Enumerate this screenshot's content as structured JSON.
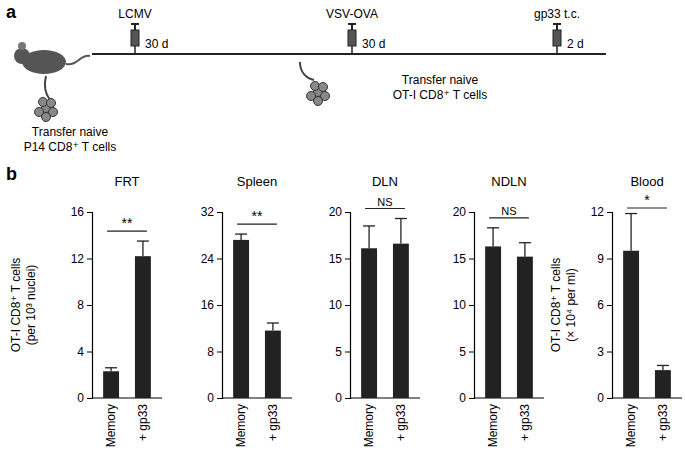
{
  "diagram": {
    "panel": "a",
    "timeline": [
      {
        "label": "LCMV",
        "after": "30 d"
      },
      {
        "label": "VSV-OVA",
        "after": "30 d"
      },
      {
        "label": "gp33 t.c.",
        "after": "2 d"
      }
    ],
    "transfers": [
      [
        "Transfer naive",
        "P14 CD8⁺ T cells"
      ],
      [
        "Transfer naive",
        "OT-I CD8⁺ T cells"
      ]
    ]
  },
  "panel": "b",
  "chart_data": [
    {
      "type": "bar",
      "title": "FRT",
      "ylabel": [
        "OT-I CD8⁺ T cells",
        "(per 10³ nuclei)"
      ],
      "categories": [
        "Memory",
        "+ gp33"
      ],
      "values": [
        2.3,
        12.2
      ],
      "errors": [
        0.3,
        1.3
      ],
      "significance": "**",
      "color": "#222222",
      "ylim": [
        0,
        16
      ],
      "yticks": [
        0,
        4,
        8,
        12,
        16
      ]
    },
    {
      "type": "bar",
      "title": "Spleen",
      "categories": [
        "Memory",
        "+ gp33"
      ],
      "values": [
        27.2,
        11.6
      ],
      "errors": [
        1.0,
        1.3
      ],
      "significance": "**",
      "color": "#222222",
      "ylim": [
        0,
        32
      ],
      "yticks": [
        0,
        8,
        16,
        24,
        32
      ]
    },
    {
      "type": "bar",
      "title": "DLN",
      "categories": [
        "Memory",
        "+ gp33"
      ],
      "values": [
        16.1,
        16.6
      ],
      "errors": [
        2.4,
        2.7
      ],
      "significance": "NS",
      "color": "#222222",
      "ylim": [
        0,
        20
      ],
      "yticks": [
        0,
        5,
        10,
        15,
        20
      ]
    },
    {
      "type": "bar",
      "title": "NDLN",
      "categories": [
        "Memory",
        "+ gp33"
      ],
      "values": [
        16.3,
        15.2
      ],
      "errors": [
        2.0,
        1.5
      ],
      "significance": "NS",
      "color": "#222222",
      "ylim": [
        0,
        20
      ],
      "yticks": [
        0,
        5,
        10,
        15,
        20
      ]
    },
    {
      "type": "bar",
      "title": "Blood",
      "ylabel": [
        "OT-I CD8⁺ T cells",
        "(× 10⁴ per ml)"
      ],
      "categories": [
        "Memory",
        "+ gp33"
      ],
      "values": [
        9.5,
        1.8
      ],
      "errors": [
        2.4,
        0.3
      ],
      "significance": "*",
      "color": "#222222",
      "ylim": [
        0,
        12
      ],
      "yticks": [
        0,
        3,
        6,
        9,
        12
      ]
    }
  ]
}
